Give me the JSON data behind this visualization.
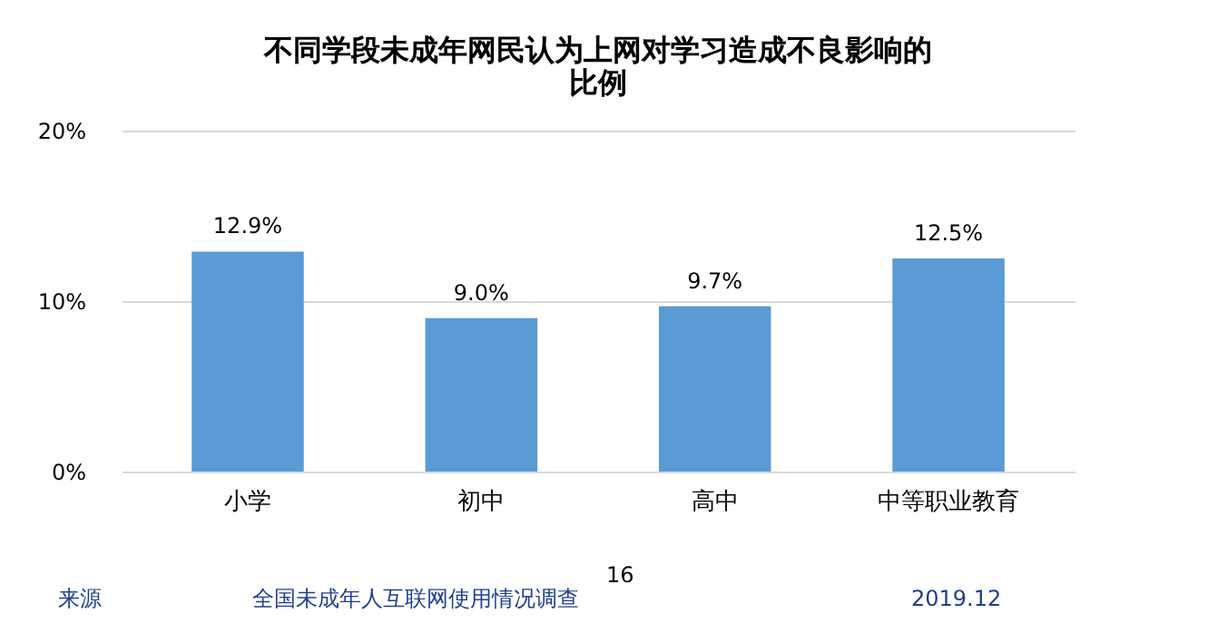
{
  "chart_data": {
    "type": "bar",
    "title": "不同学段未成年网民认为上网对学习造成不良影响的比例",
    "categories": [
      "小学",
      "初中",
      "高中",
      "中等职业教育"
    ],
    "values": [
      12.9,
      9.0,
      9.7,
      12.5
    ],
    "value_labels": [
      "12.9%",
      "9.0%",
      "9.7%",
      "12.5%"
    ],
    "color": "#5b9bd5",
    "ylim": [
      0,
      20
    ],
    "yticks": [
      {
        "value": 0,
        "label": "0%"
      },
      {
        "value": 10,
        "label": "10%"
      },
      {
        "value": 20,
        "label": "20%"
      }
    ],
    "grid": "y",
    "annotations": [
      "来源",
      "全国未成年人互联网使用情况调查",
      "16",
      "2019.12"
    ]
  }
}
